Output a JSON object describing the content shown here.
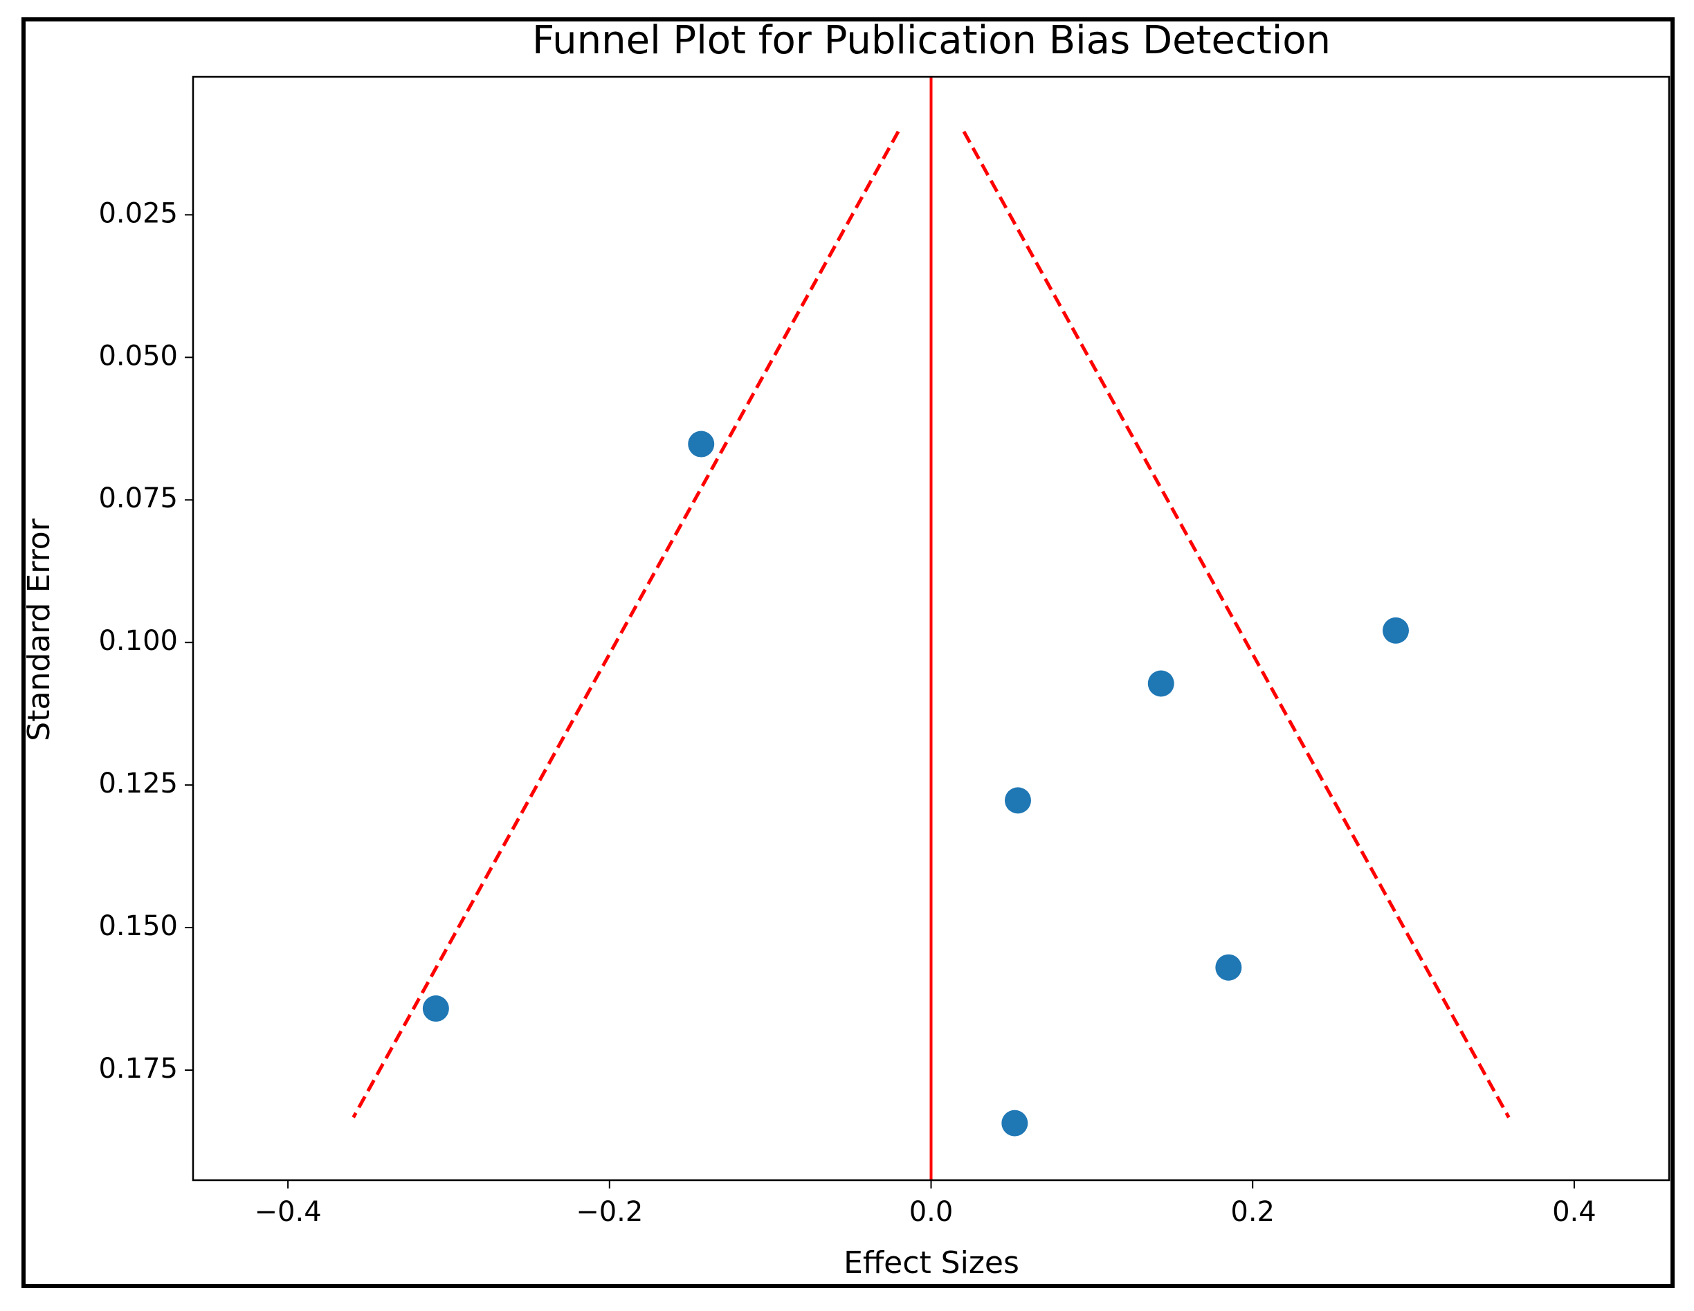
{
  "chart_data": {
    "type": "scatter",
    "title": "Funnel Plot for Publication Bias Detection",
    "x_label": "Effect Sizes",
    "y_label": "Standard Error",
    "xlim": [
      -0.459,
      0.459
    ],
    "ylim": [
      0.0008,
      0.1943
    ],
    "y_inverted": true,
    "xticks": [
      {
        "value": -0.4,
        "label": "−0.4"
      },
      {
        "value": -0.2,
        "label": "−0.2"
      },
      {
        "value": 0,
        "label": "0.0"
      },
      0.2,
      0.4
    ],
    "yticks": [
      0.025,
      {
        "value": 0.05,
        "label": "0.050"
      },
      0.075,
      {
        "value": 0.1,
        "label": "0.100"
      },
      0.125,
      {
        "value": 0.15,
        "label": "0.150"
      },
      0.175
    ],
    "reference_line": {
      "x": 0,
      "color": "#ff0000"
    },
    "series": [
      {
        "mode": "markers",
        "color": "#1f77b4",
        "x": [
          -0.143,
          -0.308,
          0.289,
          0.143,
          0.054,
          0.185,
          0.052
        ],
        "values": [
          0.0652,
          0.1642,
          0.0979,
          0.1072,
          0.1277,
          0.157,
          0.1843
        ]
      },
      {
        "mode": "dashed",
        "color": "#ff0000",
        "x": [
          -0.0204,
          -0.3593
        ],
        "values": [
          0.0104,
          0.1833
        ]
      },
      {
        "mode": "dashed",
        "color": "#ff0000",
        "x": [
          0.0204,
          0.3593
        ],
        "values": [
          0.0104,
          0.1833
        ]
      }
    ]
  }
}
